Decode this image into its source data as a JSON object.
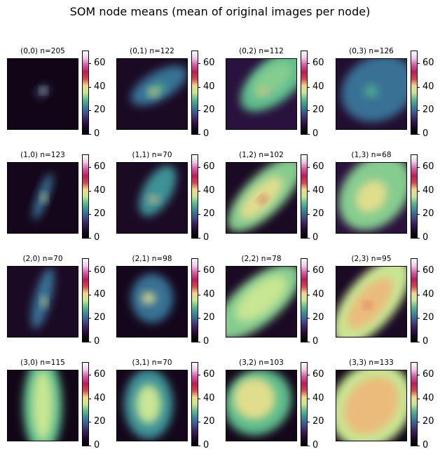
{
  "title": "SOM node means (mean of original images per node)",
  "chart_data": {
    "type": "heatmap",
    "title": "SOM node means (mean of original images per node)",
    "colormap": "cubehelix-like (black - purple - blue - teal - yellow - red - pink - white)",
    "color_range": [
      0,
      70
    ],
    "colorbar_ticks": [
      0,
      20,
      40,
      60
    ],
    "grid": [
      4,
      4
    ],
    "panels": [
      {
        "title": "(0,0) n=205",
        "node": [
          0,
          0
        ],
        "n": 205,
        "blobs": [
          {
            "cx": 0.5,
            "cy": 0.46,
            "rx": 0.1,
            "ry": 0.07,
            "rot": -40,
            "v": 0.25
          },
          {
            "cx": 0.51,
            "cy": 0.45,
            "rx": 0.04,
            "ry": 0.04,
            "rot": 0,
            "v": 0.55
          }
        ],
        "bg": 0.05
      },
      {
        "title": "(0,1) n=122",
        "node": [
          0,
          1
        ],
        "n": 122,
        "blobs": [
          {
            "cx": 0.6,
            "cy": 0.38,
            "rx": 0.45,
            "ry": 0.2,
            "rot": -30,
            "v": 0.3
          },
          {
            "cx": 0.55,
            "cy": 0.45,
            "rx": 0.15,
            "ry": 0.08,
            "rot": -30,
            "v": 0.4
          },
          {
            "cx": 0.52,
            "cy": 0.47,
            "rx": 0.06,
            "ry": 0.05,
            "rot": 0,
            "v": 0.6
          }
        ],
        "bg": 0.08
      },
      {
        "title": "(0,2) n=112",
        "node": [
          0,
          2
        ],
        "n": 112,
        "blobs": [
          {
            "cx": 0.7,
            "cy": 0.3,
            "rx": 0.6,
            "ry": 0.3,
            "rot": -40,
            "v": 0.42
          },
          {
            "cx": 0.65,
            "cy": 0.3,
            "rx": 0.35,
            "ry": 0.18,
            "rot": -40,
            "v": 0.45
          },
          {
            "cx": 0.52,
            "cy": 0.46,
            "rx": 0.06,
            "ry": 0.05,
            "rot": 0,
            "v": 0.6
          }
        ],
        "bg": 0.12
      },
      {
        "title": "(0,3) n=126",
        "node": [
          0,
          3
        ],
        "n": 126,
        "blobs": [
          {
            "cx": 0.6,
            "cy": 0.42,
            "rx": 0.55,
            "ry": 0.45,
            "rot": -30,
            "v": 0.3
          },
          {
            "cx": 0.5,
            "cy": 0.46,
            "rx": 0.1,
            "ry": 0.08,
            "rot": 0,
            "v": 0.4
          }
        ],
        "bg": 0.1
      },
      {
        "title": "(1,0) n=123",
        "node": [
          1,
          0
        ],
        "n": 123,
        "blobs": [
          {
            "cx": 0.5,
            "cy": 0.48,
            "rx": 0.08,
            "ry": 0.35,
            "rot": 20,
            "v": 0.3
          },
          {
            "cx": 0.52,
            "cy": 0.5,
            "rx": 0.04,
            "ry": 0.06,
            "rot": 0,
            "v": 0.55
          }
        ],
        "bg": 0.06
      },
      {
        "title": "(1,1) n=70",
        "node": [
          1,
          1
        ],
        "n": 70,
        "blobs": [
          {
            "cx": 0.58,
            "cy": 0.4,
            "rx": 0.2,
            "ry": 0.4,
            "rot": 30,
            "v": 0.35
          },
          {
            "cx": 0.52,
            "cy": 0.52,
            "rx": 0.07,
            "ry": 0.05,
            "rot": 0,
            "v": 0.6
          }
        ],
        "bg": 0.08
      },
      {
        "title": "(1,2) n=102",
        "node": [
          1,
          2
        ],
        "n": 102,
        "blobs": [
          {
            "cx": 0.55,
            "cy": 0.45,
            "rx": 0.7,
            "ry": 0.28,
            "rot": -45,
            "v": 0.45
          },
          {
            "cx": 0.5,
            "cy": 0.5,
            "rx": 0.4,
            "ry": 0.16,
            "rot": -45,
            "v": 0.55
          },
          {
            "cx": 0.52,
            "cy": 0.52,
            "rx": 0.06,
            "ry": 0.04,
            "rot": -45,
            "v": 0.7
          }
        ],
        "bg": 0.08
      },
      {
        "title": "(1,3) n=68",
        "node": [
          1,
          3
        ],
        "n": 68,
        "blobs": [
          {
            "cx": 0.55,
            "cy": 0.42,
            "rx": 0.6,
            "ry": 0.45,
            "rot": -50,
            "v": 0.45
          },
          {
            "cx": 0.5,
            "cy": 0.48,
            "rx": 0.25,
            "ry": 0.2,
            "rot": -50,
            "v": 0.55
          }
        ],
        "bg": 0.12
      },
      {
        "title": "(2,0) n=70",
        "node": [
          2,
          0
        ],
        "n": 70,
        "blobs": [
          {
            "cx": 0.5,
            "cy": 0.45,
            "rx": 0.12,
            "ry": 0.45,
            "rot": 15,
            "v": 0.3
          },
          {
            "cx": 0.52,
            "cy": 0.5,
            "rx": 0.04,
            "ry": 0.07,
            "rot": 0,
            "v": 0.55
          }
        ],
        "bg": 0.08
      },
      {
        "title": "(2,1) n=98",
        "node": [
          2,
          1
        ],
        "n": 98,
        "blobs": [
          {
            "cx": 0.5,
            "cy": 0.45,
            "rx": 0.3,
            "ry": 0.35,
            "rot": 0,
            "v": 0.3
          },
          {
            "cx": 0.45,
            "cy": 0.45,
            "rx": 0.1,
            "ry": 0.08,
            "rot": 0,
            "v": 0.55
          }
        ],
        "bg": 0.06
      },
      {
        "title": "(2,2) n=78",
        "node": [
          2,
          2
        ],
        "n": 78,
        "blobs": [
          {
            "cx": 0.45,
            "cy": 0.5,
            "rx": 0.75,
            "ry": 0.32,
            "rot": -40,
            "v": 0.45
          },
          {
            "cx": 0.5,
            "cy": 0.45,
            "rx": 0.45,
            "ry": 0.2,
            "rot": -40,
            "v": 0.5
          }
        ],
        "bg": 0.08
      },
      {
        "title": "(2,3) n=95",
        "node": [
          2,
          3
        ],
        "n": 95,
        "blobs": [
          {
            "cx": 0.5,
            "cy": 0.5,
            "rx": 0.75,
            "ry": 0.35,
            "rot": -50,
            "v": 0.5
          },
          {
            "cx": 0.48,
            "cy": 0.52,
            "rx": 0.45,
            "ry": 0.2,
            "rot": -50,
            "v": 0.6
          },
          {
            "cx": 0.45,
            "cy": 0.55,
            "rx": 0.05,
            "ry": 0.04,
            "rot": 0,
            "v": 0.66
          }
        ],
        "bg": 0.08
      },
      {
        "title": "(3,0) n=115",
        "node": [
          3,
          0
        ],
        "n": 115,
        "blobs": [
          {
            "cx": 0.5,
            "cy": 0.5,
            "rx": 0.28,
            "ry": 0.7,
            "rot": 0,
            "v": 0.42
          },
          {
            "cx": 0.5,
            "cy": 0.5,
            "rx": 0.15,
            "ry": 0.5,
            "rot": 0,
            "v": 0.5
          }
        ],
        "bg": 0.05
      },
      {
        "title": "(3,1) n=70",
        "node": [
          3,
          1
        ],
        "n": 70,
        "blobs": [
          {
            "cx": 0.45,
            "cy": 0.48,
            "rx": 0.35,
            "ry": 0.5,
            "rot": 0,
            "v": 0.35
          },
          {
            "cx": 0.45,
            "cy": 0.48,
            "rx": 0.18,
            "ry": 0.28,
            "rot": 0,
            "v": 0.5
          }
        ],
        "bg": 0.06
      },
      {
        "title": "(3,2) n=103",
        "node": [
          3,
          2
        ],
        "n": 103,
        "blobs": [
          {
            "cx": 0.45,
            "cy": 0.45,
            "rx": 0.5,
            "ry": 0.45,
            "rot": -40,
            "v": 0.42
          },
          {
            "cx": 0.4,
            "cy": 0.4,
            "rx": 0.3,
            "ry": 0.3,
            "rot": -40,
            "v": 0.55
          }
        ],
        "bg": 0.06
      },
      {
        "title": "(3,3) n=133",
        "node": [
          3,
          3
        ],
        "n": 133,
        "blobs": [
          {
            "cx": 0.5,
            "cy": 0.5,
            "rx": 0.65,
            "ry": 0.55,
            "rot": -50,
            "v": 0.5
          },
          {
            "cx": 0.5,
            "cy": 0.5,
            "rx": 0.45,
            "ry": 0.35,
            "rot": -50,
            "v": 0.6
          }
        ],
        "bg": 0.05
      }
    ]
  }
}
